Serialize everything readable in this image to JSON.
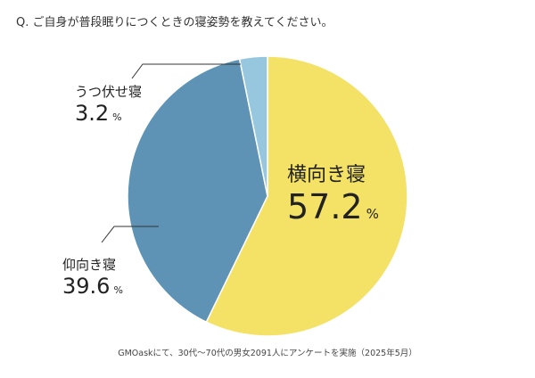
{
  "question": "Q. ご自身が普段眠りにつくときの寝姿勢を教えてください。",
  "source": "GMOaskにて、30代〜70代の男女2091人にアンケートを実施（2025年5月）",
  "chart_data": {
    "type": "pie",
    "title": "Q. ご自身が普段眠りにつくときの寝姿勢を教えてください。",
    "start": "12 o'clock, clockwise",
    "slices": [
      {
        "label": "横向き寝",
        "value": 57.2,
        "color": "#F3E265"
      },
      {
        "label": "仰向き寝",
        "value": 39.6,
        "color": "#5E93B5"
      },
      {
        "label": "うつ伏せ寝",
        "value": 3.2,
        "color": "#97C6DF"
      }
    ],
    "unit": "%"
  }
}
